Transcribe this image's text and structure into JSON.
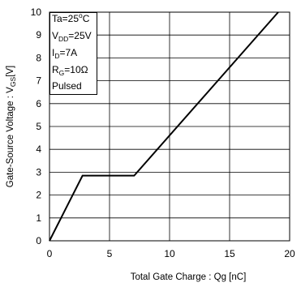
{
  "chart_data": {
    "type": "line",
    "xlabel": "Total Gate Charge : Qg  [nC]",
    "ylabel_main": "Gate-Source Voltage : V",
    "ylabel_sub": "GS",
    "ylabel_unit": "[V]",
    "xlim": [
      0,
      20
    ],
    "ylim": [
      0,
      10
    ],
    "x_ticks": [
      "0",
      "5",
      "10",
      "15",
      "20"
    ],
    "y_ticks": [
      "0",
      "1",
      "2",
      "3",
      "4",
      "5",
      "6",
      "7",
      "8",
      "9",
      "10"
    ],
    "grid": true,
    "conditions": {
      "ta": {
        "pre": "Ta=25",
        "sup": "o",
        "post": "C"
      },
      "vdd": {
        "pre": "V",
        "sub": "DD",
        "post": "=25V"
      },
      "id": {
        "pre": "I",
        "sub": "D",
        "post": "=7A"
      },
      "rg": {
        "pre": "R",
        "sub": "G",
        "post": "=10Ω"
      },
      "mode": "Pulsed"
    },
    "series": [
      {
        "x": [
          0,
          2.75,
          7.05,
          19.05
        ],
        "y": [
          0,
          2.85,
          2.85,
          10
        ],
        "color": "#000000"
      }
    ]
  }
}
